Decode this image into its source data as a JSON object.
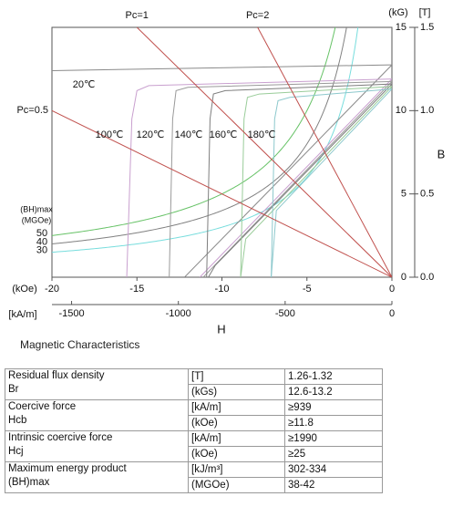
{
  "chart_data": {
    "type": "line",
    "x_label": "H",
    "y_label": "B",
    "x_unit": "(kOe)",
    "x2_unit": "[kA/m]",
    "y_unit": "(kG)",
    "y2_unit": "[T]",
    "xlim": [
      -20,
      0
    ],
    "xticks": [
      -20,
      -15,
      -10,
      -5,
      0
    ],
    "x2lim": [
      -1592,
      0
    ],
    "x2ticks": [
      -1500,
      -1000,
      -500,
      0
    ],
    "ylim": [
      0,
      15
    ],
    "yticks": [
      0,
      5,
      10,
      15
    ],
    "y2lim": [
      0,
      1.5
    ],
    "y2ticks": [
      {
        "value": 0,
        "label": "0.0"
      },
      0.5,
      {
        "value": 1,
        "label": "1.0"
      },
      1.5
    ],
    "series": [
      {
        "name": "20℃",
        "color": "#8a8a8a",
        "x": [
          -20,
          0
        ],
        "values": [
          12.4,
          12.75
        ],
        "normal_x": [
          -12.2,
          0
        ],
        "normal_values": [
          0,
          12.75
        ]
      },
      {
        "name": "100℃",
        "color": "#c9a0cf",
        "x": [
          -15.6,
          -15.3,
          -15.0,
          -14.3,
          0
        ],
        "values": [
          0,
          9.5,
          11.2,
          11.5,
          11.9
        ],
        "normal_x": [
          -11.3,
          0
        ],
        "normal_values": [
          0,
          11.9
        ]
      },
      {
        "name": "120℃",
        "color": "#9a9a9a",
        "x": [
          -13.1,
          -12.9,
          -12.7,
          -12.0,
          0
        ],
        "values": [
          0,
          9.5,
          11.2,
          11.4,
          11.75
        ],
        "normal_x": [
          -11.1,
          0
        ],
        "normal_values": [
          0,
          11.75
        ]
      },
      {
        "name": "140℃",
        "color": "#7e7e7e",
        "x": [
          -10.9,
          -10.7,
          -10.5,
          -9.8,
          0
        ],
        "values": [
          0,
          9.5,
          11.0,
          11.2,
          11.6
        ],
        "normal_x": [
          -10.8,
          -10.4,
          0
        ],
        "normal_values": [
          0,
          0.7,
          11.6
        ]
      },
      {
        "name": "160℃",
        "color": "#99cc99",
        "x": [
          -8.9,
          -8.7,
          -8.5,
          -7.8,
          0
        ],
        "values": [
          0,
          9.5,
          10.8,
          11.0,
          11.45
        ],
        "normal_x": [
          -8.9,
          -8.6,
          0
        ],
        "normal_values": [
          0,
          2.3,
          11.45
        ]
      },
      {
        "name": "180℃",
        "color": "#8cc8cc",
        "x": [
          -7.1,
          -6.9,
          -6.7,
          -6.0,
          0
        ],
        "values": [
          0,
          9.5,
          10.6,
          10.8,
          11.3
        ],
        "normal_x": [
          -7.1,
          -6.8,
          0
        ],
        "normal_values": [
          0,
          4.0,
          11.3
        ]
      }
    ],
    "load_lines": [
      {
        "label": "Pc=1",
        "color": "#c0504d",
        "x": [
          -15,
          0
        ],
        "values": [
          15,
          0
        ]
      },
      {
        "label": "Pc=2",
        "color": "#c0504d",
        "x": [
          -7.9,
          0
        ],
        "values": [
          15,
          0
        ]
      },
      {
        "label": "Pc=0.5",
        "color": "#c0504d",
        "x": [
          -20,
          0
        ],
        "values": [
          10,
          0
        ]
      }
    ],
    "bh": {
      "label": "(BH)max",
      "unit": "(MGOe)",
      "values": [
        50,
        40,
        30
      ],
      "colors": [
        "#66c266",
        "#808080",
        "#77dddd"
      ]
    }
  },
  "heading": "Magnetic Characteristics",
  "table": {
    "rows": [
      [
        [
          "Residual flux density",
          "Br"
        ],
        [
          "[T]",
          "(kGs)"
        ],
        [
          "1.26-1.32",
          "12.6-13.2"
        ]
      ],
      [
        [
          "Coercive force",
          "Hcb"
        ],
        [
          "[kA/m]",
          "(kOe)"
        ],
        [
          "≥939",
          "≥11.8"
        ]
      ],
      [
        [
          "Intrinsic coercive force",
          "Hcj"
        ],
        [
          "[kA/m]",
          "(kOe)"
        ],
        [
          "≥1990",
          "≥25"
        ]
      ],
      [
        [
          "Maximum energy product",
          "(BH)max"
        ],
        [
          "[kJ/m³]",
          "(MGOe)"
        ],
        [
          "302-334",
          "38-42"
        ]
      ]
    ]
  }
}
